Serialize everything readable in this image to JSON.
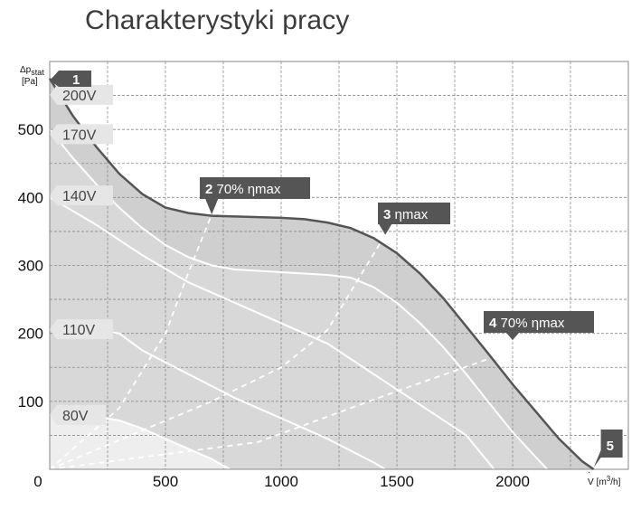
{
  "title": "Charakterystyki pracy",
  "chart_data": {
    "type": "line",
    "title": "Charakterystyki pracy",
    "ylabel": "Δp stat [Pa]",
    "ylabel_parts": {
      "symbol": "Δp",
      "sub": "stat",
      "unit": "[Pa]"
    },
    "xlabel": "V [m³/h]",
    "xlabel_parts": {
      "symbol": "V",
      "unit_pre": "[m",
      "unit_sup": "3",
      "unit_post": "/h]"
    },
    "xlim": [
      0,
      2500
    ],
    "ylim": [
      0,
      600
    ],
    "x_ticks": [
      0,
      500,
      1000,
      1500,
      2000
    ],
    "y_ticks": [
      100,
      200,
      300,
      400,
      500
    ],
    "grid": true,
    "series": [
      {
        "name": "200V",
        "values": [
          [
            0,
            575
          ],
          [
            100,
            520
          ],
          [
            200,
            475
          ],
          [
            300,
            435
          ],
          [
            400,
            405
          ],
          [
            500,
            385
          ],
          [
            600,
            377
          ],
          [
            700,
            373
          ],
          [
            800,
            372
          ],
          [
            900,
            371
          ],
          [
            1000,
            370
          ],
          [
            1100,
            368
          ],
          [
            1200,
            363
          ],
          [
            1300,
            355
          ],
          [
            1400,
            340
          ],
          [
            1500,
            318
          ],
          [
            1600,
            288
          ],
          [
            1700,
            252
          ],
          [
            1800,
            210
          ],
          [
            1900,
            168
          ],
          [
            2000,
            125
          ],
          [
            2100,
            85
          ],
          [
            2200,
            45
          ],
          [
            2300,
            12
          ],
          [
            2350,
            0
          ]
        ]
      },
      {
        "name": "170V",
        "values": [
          [
            0,
            500
          ],
          [
            100,
            458
          ],
          [
            200,
            420
          ],
          [
            300,
            385
          ],
          [
            400,
            355
          ],
          [
            500,
            330
          ],
          [
            600,
            312
          ],
          [
            700,
            300
          ],
          [
            800,
            294
          ],
          [
            900,
            292
          ],
          [
            1000,
            290
          ],
          [
            1100,
            288
          ],
          [
            1200,
            286
          ],
          [
            1300,
            282
          ],
          [
            1400,
            268
          ],
          [
            1500,
            245
          ],
          [
            1600,
            215
          ],
          [
            1700,
            180
          ],
          [
            1800,
            140
          ],
          [
            1900,
            97
          ],
          [
            2000,
            55
          ],
          [
            2100,
            18
          ],
          [
            2150,
            0
          ]
        ]
      },
      {
        "name": "140V",
        "values": [
          [
            0,
            400
          ],
          [
            200,
            360
          ],
          [
            400,
            315
          ],
          [
            600,
            275
          ],
          [
            800,
            245
          ],
          [
            1000,
            215
          ],
          [
            1200,
            185
          ],
          [
            1400,
            140
          ],
          [
            1600,
            95
          ],
          [
            1800,
            50
          ],
          [
            1920,
            0
          ]
        ]
      },
      {
        "name": "110V",
        "values": [
          [
            0,
            205
          ],
          [
            200,
            205
          ],
          [
            300,
            200
          ],
          [
            400,
            175
          ],
          [
            600,
            140
          ],
          [
            800,
            105
          ],
          [
            1000,
            75
          ],
          [
            1200,
            45
          ],
          [
            1400,
            10
          ],
          [
            1450,
            0
          ]
        ]
      },
      {
        "name": "80V",
        "values": [
          [
            0,
            80
          ],
          [
            150,
            80
          ],
          [
            300,
            72
          ],
          [
            400,
            60
          ],
          [
            500,
            45
          ],
          [
            600,
            30
          ],
          [
            700,
            15
          ],
          [
            780,
            0
          ]
        ]
      }
    ],
    "efficiency_lines": [
      {
        "name": "2 70% ηmax",
        "values": [
          [
            0,
            0
          ],
          [
            300,
            90
          ],
          [
            500,
            200
          ],
          [
            600,
            290
          ],
          [
            700,
            375
          ]
        ]
      },
      {
        "name": "3 ηmax",
        "values": [
          [
            0,
            0
          ],
          [
            700,
            100
          ],
          [
            1000,
            150
          ],
          [
            1200,
            205
          ],
          [
            1450,
            345
          ]
        ]
      },
      {
        "name": "4 70% ηmax",
        "values": [
          [
            0,
            0
          ],
          [
            900,
            40
          ],
          [
            1500,
            115
          ],
          [
            2000,
            175
          ],
          [
            2050,
            185
          ]
        ]
      }
    ],
    "points": [
      {
        "label": "1",
        "x": 0,
        "y": 580
      },
      {
        "label": "2",
        "label_text": "70% ηmax",
        "x": 700,
        "y": 375
      },
      {
        "label": "3",
        "label_text": "ηmax",
        "x": 1450,
        "y": 345
      },
      {
        "label": "4",
        "label_text": "70% ηmax",
        "x": 2000,
        "y": 190
      },
      {
        "label": "5",
        "x": 2350,
        "y": 0
      }
    ],
    "voltage_labels": [
      "200V",
      "170V",
      "140V",
      "110V",
      "80V"
    ],
    "colors": {
      "region_outer": "#cfcfcf",
      "region_inner": "#d8d8d8",
      "region_low": "#eeeeee",
      "envelope": "#555555",
      "callout": "#555555",
      "curve": "#ffffff",
      "grid": "#8a8a8a"
    }
  }
}
